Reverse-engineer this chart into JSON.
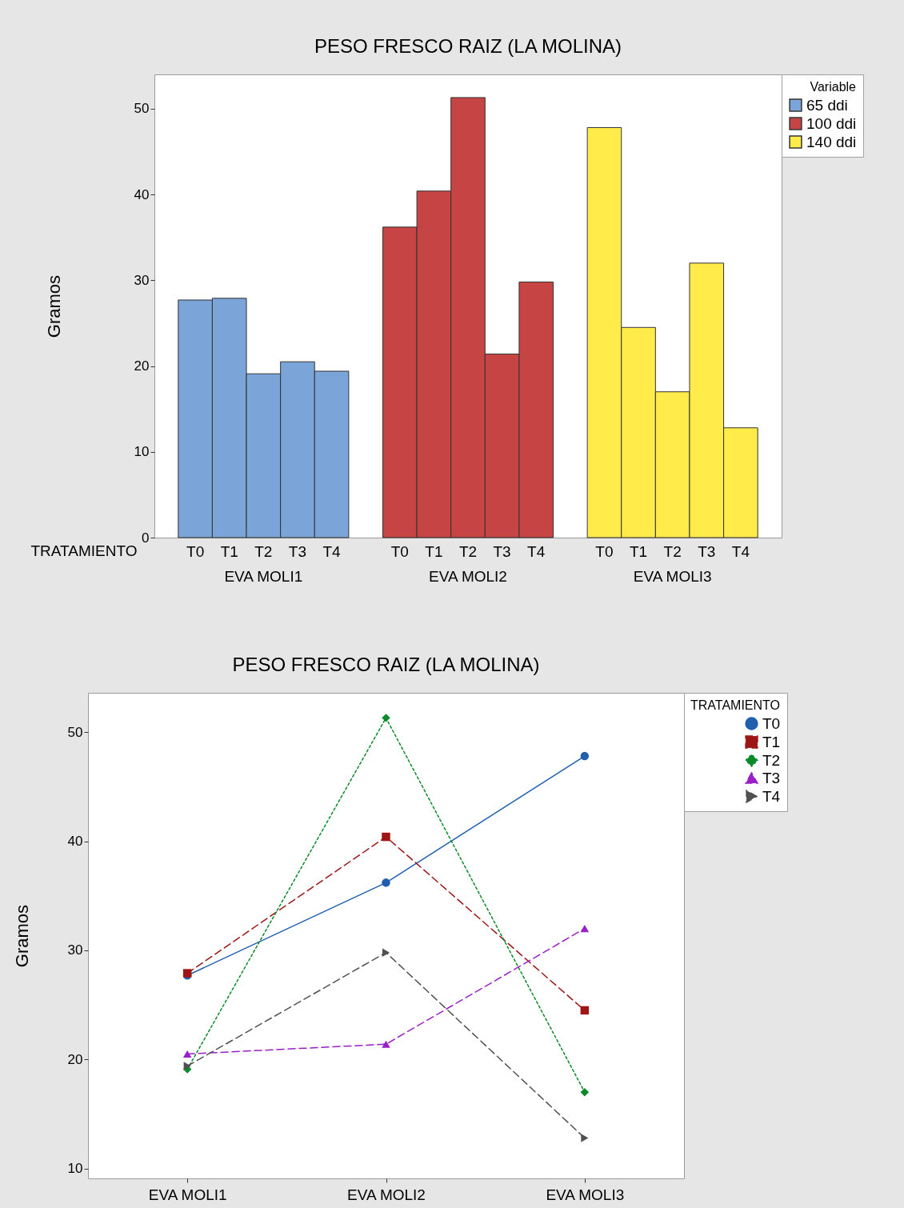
{
  "chart_data": [
    {
      "type": "bar",
      "title": "PESO FRESCO RAIZ (LA MOLINA)",
      "xlabel": "TRATAMIENTO",
      "ylabel": "Gramos",
      "legend_title": "Variable",
      "legend": "top right",
      "categories": [
        "T0",
        "T1",
        "T2",
        "T3",
        "T4",
        "T0",
        "T1",
        "T2",
        "T3",
        "T4",
        "T0",
        "T1",
        "T2",
        "T3",
        "T4"
      ],
      "series": [
        {
          "name": "65 ddi",
          "color": "#7ba5d8",
          "values": [
            27.7,
            27.9,
            19.1,
            20.5,
            19.4,
            null,
            null,
            null,
            null,
            null,
            null,
            null,
            null,
            null,
            null
          ]
        },
        {
          "name": "100 ddi",
          "color": "#c64444",
          "values": [
            null,
            null,
            null,
            null,
            null,
            36.2,
            40.4,
            51.3,
            21.4,
            29.8,
            null,
            null,
            null,
            null,
            null
          ]
        },
        {
          "name": "140 ddi",
          "color": "#ffeb4a",
          "values": [
            null,
            null,
            null,
            null,
            null,
            null,
            null,
            null,
            null,
            null,
            47.8,
            24.5,
            17.0,
            32.0,
            12.8
          ]
        }
      ],
      "annotations": [
        "EVA MOLI1",
        "EVA MOLI2",
        "EVA MOLI3"
      ],
      "ylim": [
        0,
        54
      ],
      "yticks": [
        0,
        10,
        20,
        30,
        40,
        50
      ]
    },
    {
      "type": "line",
      "title": "PESO FRESCO RAIZ (LA MOLINA)",
      "ylabel": "Gramos",
      "legend_title": "TRATAMIENTO",
      "legend": "top right",
      "categories": [
        "EVA MOLI1",
        "EVA MOLI2",
        "EVA MOLI3"
      ],
      "series": [
        {
          "name": "T0",
          "color": "#1f5fae",
          "marker": "circle",
          "line_style": "solid",
          "values": [
            27.7,
            36.2,
            47.8
          ]
        },
        {
          "name": "T1",
          "color": "#9e1515",
          "marker": "square",
          "line_style": "dashed",
          "values": [
            27.9,
            40.4,
            24.5
          ]
        },
        {
          "name": "T2",
          "color": "#0a8a2a",
          "marker": "diamond",
          "line_style": "dotted",
          "values": [
            19.1,
            51.3,
            17.0
          ]
        },
        {
          "name": "T3",
          "color": "#9a1fc8",
          "marker": "triangle",
          "line_style": "dashed",
          "values": [
            20.5,
            21.4,
            32.0
          ]
        },
        {
          "name": "T4",
          "color": "#505050",
          "marker": "triangle-right",
          "line_style": "dashed",
          "values": [
            19.4,
            29.8,
            12.8
          ]
        }
      ],
      "ylim": [
        9.1,
        53.6
      ],
      "yticks": [
        10,
        20,
        30,
        40,
        50
      ]
    }
  ]
}
